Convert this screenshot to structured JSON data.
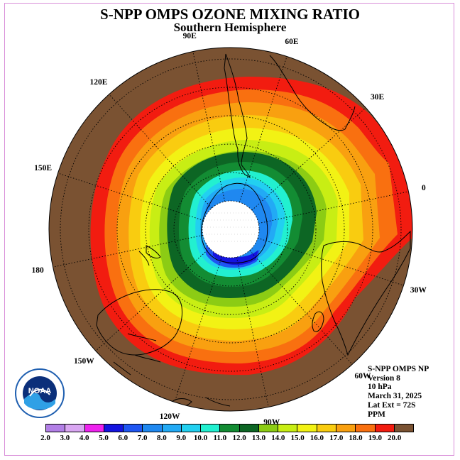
{
  "title": "S-NPP OMPS OZONE MIXING RATIO",
  "subtitle": "Southern Hemisphere",
  "longitude_labels": [
    {
      "id": "lon-90w",
      "text": "90W",
      "lon": -90
    },
    {
      "id": "lon-60w",
      "text": "60W",
      "lon": -60
    },
    {
      "id": "lon-30w",
      "text": "30W",
      "lon": -30
    },
    {
      "id": "lon-0",
      "text": "0",
      "lon": 0
    },
    {
      "id": "lon-30e",
      "text": "30E",
      "lon": 30
    },
    {
      "id": "lon-60e",
      "text": "60E",
      "lon": 60
    },
    {
      "id": "lon-90e",
      "text": "90E",
      "lon": 90
    },
    {
      "id": "lon-120e",
      "text": "120E",
      "lon": 120
    },
    {
      "id": "lon-150e",
      "text": "150E",
      "lon": 150
    },
    {
      "id": "lon-180",
      "text": "180",
      "lon": 180
    },
    {
      "id": "lon-150w",
      "text": "150W",
      "lon": -150
    },
    {
      "id": "lon-120w",
      "text": "120W",
      "lon": -120
    }
  ],
  "info": {
    "instrument": "S-NPP OMPS NP",
    "version": "Version 8",
    "level": "10 hPa",
    "date": "March 31, 2025",
    "lat_ext": "Lat Ext = 72S",
    "units": "PPM"
  },
  "legend": {
    "values": [
      "2.0",
      "3.0",
      "4.0",
      "5.0",
      "6.0",
      "7.0",
      "8.0",
      "9.0",
      "10.0",
      "11.0",
      "12.0",
      "13.0",
      "14.0",
      "15.0",
      "16.0",
      "17.0",
      "18.0",
      "19.0",
      "20.0"
    ],
    "colors": [
      "#b27fe6",
      "#d9a6f2",
      "#ee22ee",
      "#1414e0",
      "#1f56f2",
      "#1f88f0",
      "#22aaf5",
      "#22d0f0",
      "#22f0d0",
      "#138c33",
      "#0d6624",
      "#8ccc14",
      "#c8ee14",
      "#f2f214",
      "#f9cc10",
      "#f9a010",
      "#f97010",
      "#f21c10",
      "#7a5232"
    ]
  },
  "colors": {
    "frame": "#d98ed9",
    "high_ozone": "#7a5232",
    "polar_night": "#ffffff",
    "continent_outline": "#000000"
  },
  "logo": {
    "text": "NOAA"
  }
}
